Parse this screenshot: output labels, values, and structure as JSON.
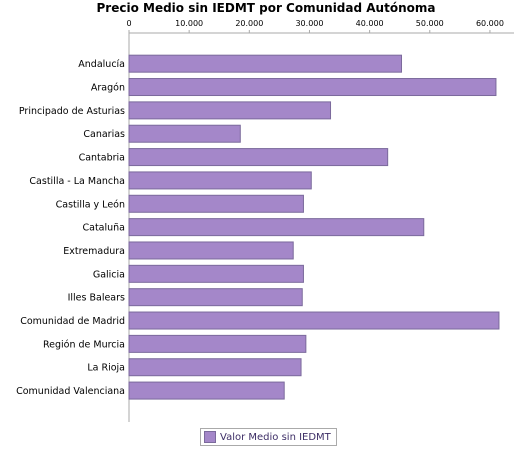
{
  "chart_data": {
    "type": "bar",
    "orientation": "horizontal",
    "title": "Precio Medio sin IEDMT por Comunidad Autónoma",
    "categories": [
      "Andalucía",
      "Aragón",
      "Principado de Asturias",
      "Canarias",
      "Cantabria",
      "Castilla - La Mancha",
      "Castilla y León",
      "Cataluña",
      "Extremadura",
      "Galicia",
      "Illes Balears",
      "Comunidad de Madrid",
      "Región de Murcia",
      "La Rioja",
      "Comunidad Valenciana"
    ],
    "series": [
      {
        "name": "Valor Medio sin IEDMT",
        "color": "#a487c9",
        "values": [
          45300,
          61000,
          33500,
          18500,
          43000,
          30300,
          29000,
          49000,
          27300,
          29000,
          28800,
          61500,
          29400,
          28600,
          25800
        ]
      }
    ],
    "xlim": [
      0,
      64000
    ],
    "ticks": [
      0,
      10000,
      20000,
      30000,
      40000,
      50000,
      60000
    ],
    "tick_labels": [
      "0",
      "10.000",
      "20.000",
      "30.000",
      "40.000",
      "50.000",
      "60.000"
    ],
    "xaxis_position": "top",
    "grid": false,
    "legend_position": "bottom-center",
    "bar_stroke": "#7b6a9c",
    "axis_color": "#aaaaaa"
  }
}
